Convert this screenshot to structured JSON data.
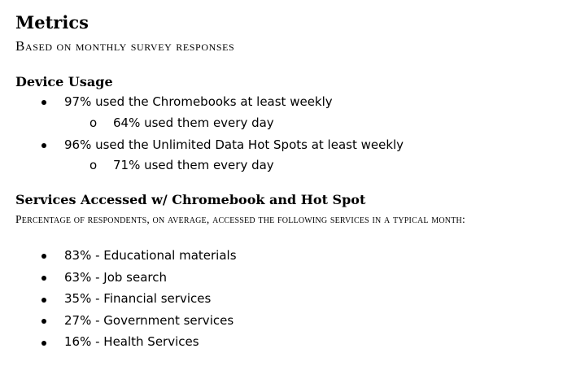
{
  "title": "Metrics",
  "subtitle": "Based on monthly survey responses",
  "device_usage": {
    "heading": "Device Usage",
    "items": [
      {
        "text": "97% used the Chromebooks at least weekly",
        "sub": {
          "marker": "o",
          "text": "64% used them every day"
        }
      },
      {
        "text": "96% used the Unlimited Data Hot Spots at least weekly",
        "sub": {
          "marker": "o",
          "text": "71% used them every day"
        }
      }
    ]
  },
  "services": {
    "heading": "Services Accessed w/ Chromebook and Hot Spot",
    "subtitle": "Percentage of respondents, on average, accessed the following services in a typical month:",
    "items": [
      "83% - Educational materials",
      "63% - Job search",
      "35% - Financial services",
      "27% - Government  services",
      "16% - Health Services"
    ]
  }
}
